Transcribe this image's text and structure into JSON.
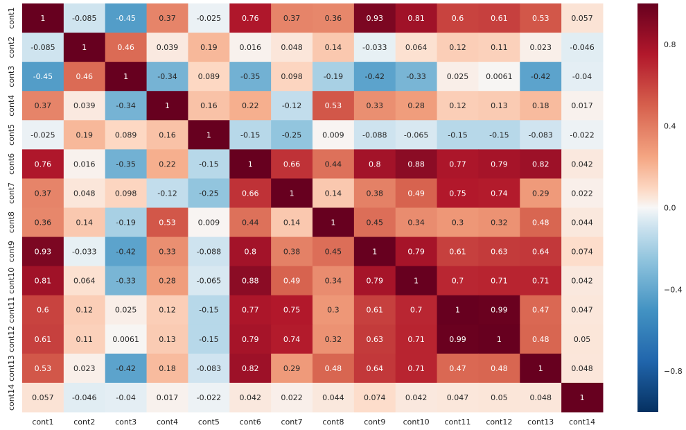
{
  "chart_data": {
    "type": "heatmap",
    "title": "",
    "xlabel": "",
    "ylabel": "",
    "x_categories": [
      "cont1",
      "cont2",
      "cont3",
      "cont4",
      "cont5",
      "cont6",
      "cont7",
      "cont8",
      "cont9",
      "cont10",
      "cont11",
      "cont12",
      "cont13",
      "cont14"
    ],
    "y_categories": [
      "cont1",
      "cont2",
      "cont3",
      "cont4",
      "cont5",
      "cont6",
      "cont7",
      "cont8",
      "cont9",
      "cont10",
      "cont11",
      "cont12",
      "cont13",
      "cont14"
    ],
    "matrix": [
      [
        "1",
        "-0.085",
        "-0.45",
        "0.37",
        "-0.025",
        "0.76",
        "0.37",
        "0.36",
        "0.93",
        "0.81",
        "0.6",
        "0.61",
        "0.53",
        "0.057"
      ],
      [
        "-0.085",
        "1",
        "0.46",
        "0.039",
        "0.19",
        "0.016",
        "0.048",
        "0.14",
        "-0.033",
        "0.064",
        "0.12",
        "0.11",
        "0.023",
        "-0.046"
      ],
      [
        "-0.45",
        "0.46",
        "1",
        "-0.34",
        "0.089",
        "-0.35",
        "0.098",
        "-0.19",
        "-0.42",
        "-0.33",
        "0.025",
        "0.0061",
        "-0.42",
        "-0.04"
      ],
      [
        "0.37",
        "0.039",
        "-0.34",
        "1",
        "0.16",
        "0.22",
        "-0.12",
        "0.53",
        "0.33",
        "0.28",
        "0.12",
        "0.13",
        "0.18",
        "0.017"
      ],
      [
        "-0.025",
        "0.19",
        "0.089",
        "0.16",
        "1",
        "-0.15",
        "-0.25",
        "0.009",
        "-0.088",
        "-0.065",
        "-0.15",
        "-0.15",
        "-0.083",
        "-0.022"
      ],
      [
        "0.76",
        "0.016",
        "-0.35",
        "0.22",
        "-0.15",
        "1",
        "0.66",
        "0.44",
        "0.8",
        "0.88",
        "0.77",
        "0.79",
        "0.82",
        "0.042"
      ],
      [
        "0.37",
        "0.048",
        "0.098",
        "-0.12",
        "-0.25",
        "0.66",
        "1",
        "0.14",
        "0.38",
        "0.49",
        "0.75",
        "0.74",
        "0.29",
        "0.022"
      ],
      [
        "0.36",
        "0.14",
        "-0.19",
        "0.53",
        "0.009",
        "0.44",
        "0.14",
        "1",
        "0.45",
        "0.34",
        "0.3",
        "0.32",
        "0.48",
        "0.044"
      ],
      [
        "0.93",
        "-0.033",
        "-0.42",
        "0.33",
        "-0.088",
        "0.8",
        "0.38",
        "0.45",
        "1",
        "0.79",
        "0.61",
        "0.63",
        "0.64",
        "0.074"
      ],
      [
        "0.81",
        "0.064",
        "-0.33",
        "0.28",
        "-0.065",
        "0.88",
        "0.49",
        "0.34",
        "0.79",
        "1",
        "0.7",
        "0.71",
        "0.71",
        "0.042"
      ],
      [
        "0.6",
        "0.12",
        "0.025",
        "0.12",
        "-0.15",
        "0.77",
        "0.75",
        "0.3",
        "0.61",
        "0.7",
        "1",
        "0.99",
        "0.47",
        "0.047"
      ],
      [
        "0.61",
        "0.11",
        "0.0061",
        "0.13",
        "-0.15",
        "0.79",
        "0.74",
        "0.32",
        "0.63",
        "0.71",
        "0.99",
        "1",
        "0.48",
        "0.05"
      ],
      [
        "0.53",
        "0.023",
        "-0.42",
        "0.18",
        "-0.083",
        "0.82",
        "0.29",
        "0.48",
        "0.64",
        "0.71",
        "0.47",
        "0.48",
        "1",
        "0.048"
      ],
      [
        "0.057",
        "-0.046",
        "-0.04",
        "0.017",
        "-0.022",
        "0.042",
        "0.022",
        "0.044",
        "0.074",
        "0.042",
        "0.047",
        "0.05",
        "0.048",
        "1"
      ]
    ],
    "colorbar": {
      "range": [
        -1,
        1
      ],
      "ticks": [
        "0.8",
        "0.4",
        "0.0",
        "−0.4",
        "−0.8"
      ],
      "tick_values": [
        0.8,
        0.4,
        0.0,
        -0.4,
        -0.8
      ],
      "colormap": "RdBu_r"
    },
    "grid": false,
    "legend": "right"
  }
}
